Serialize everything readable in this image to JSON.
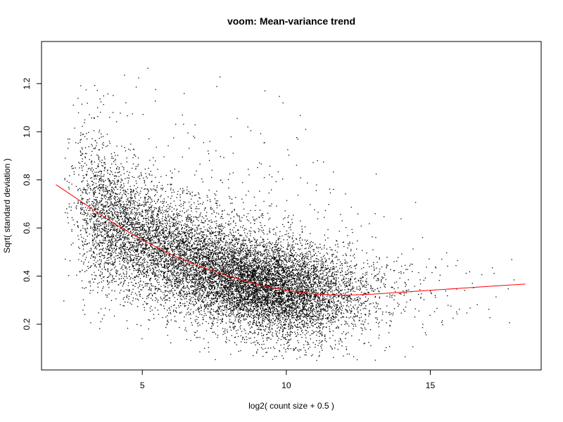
{
  "chart_data": {
    "type": "scatter",
    "title": "voom: Mean-variance trend",
    "xlabel": "log2( count size + 0.5 )",
    "ylabel": "Sqrt( standard deviation )",
    "xlim": [
      1.5,
      18.85
    ],
    "ylim": [
      0.01,
      1.375
    ],
    "x_ticks": [
      5,
      10,
      15
    ],
    "x_tick_labels": [
      "5",
      "10",
      "15"
    ],
    "y_ticks": [
      0.2,
      0.4,
      0.6,
      0.8,
      1.0,
      1.2
    ],
    "y_tick_labels": [
      "0.2",
      "0.4",
      "0.6",
      "0.8",
      "1.0",
      "1.2"
    ],
    "grid": false,
    "legend": "none",
    "colors": {
      "points": "#000000",
      "trend": "#ff0000"
    },
    "trend_line": {
      "x": [
        2.0,
        3.0,
        4.0,
        5.0,
        6.0,
        7.0,
        8.0,
        9.0,
        10.0,
        11.0,
        12.0,
        13.0,
        14.0,
        15.0,
        16.0,
        17.0,
        18.3
      ],
      "y": [
        0.78,
        0.7,
        0.62,
        0.55,
        0.49,
        0.44,
        0.4,
        0.365,
        0.34,
        0.325,
        0.32,
        0.325,
        0.333,
        0.341,
        0.349,
        0.357,
        0.367
      ]
    },
    "point_density": [
      {
        "x": 2.5,
        "y_mean": 0.74,
        "y_sd": 0.16,
        "n": 55
      },
      {
        "x": 3.0,
        "y_mean": 0.7,
        "y_sd": 0.17,
        "n": 260
      },
      {
        "x": 3.5,
        "y_mean": 0.65,
        "y_sd": 0.15,
        "n": 520
      },
      {
        "x": 4.0,
        "y_mean": 0.61,
        "y_sd": 0.14,
        "n": 560
      },
      {
        "x": 4.5,
        "y_mean": 0.58,
        "y_sd": 0.13,
        "n": 560
      },
      {
        "x": 5.0,
        "y_mean": 0.55,
        "y_sd": 0.13,
        "n": 560
      },
      {
        "x": 5.5,
        "y_mean": 0.52,
        "y_sd": 0.12,
        "n": 560
      },
      {
        "x": 6.0,
        "y_mean": 0.49,
        "y_sd": 0.12,
        "n": 600
      },
      {
        "x": 6.5,
        "y_mean": 0.47,
        "y_sd": 0.115,
        "n": 640
      },
      {
        "x": 7.0,
        "y_mean": 0.44,
        "y_sd": 0.11,
        "n": 720
      },
      {
        "x": 7.5,
        "y_mean": 0.42,
        "y_sd": 0.11,
        "n": 780
      },
      {
        "x": 8.0,
        "y_mean": 0.4,
        "y_sd": 0.105,
        "n": 860
      },
      {
        "x": 8.5,
        "y_mean": 0.38,
        "y_sd": 0.1,
        "n": 940
      },
      {
        "x": 9.0,
        "y_mean": 0.365,
        "y_sd": 0.1,
        "n": 980
      },
      {
        "x": 9.5,
        "y_mean": 0.35,
        "y_sd": 0.1,
        "n": 940
      },
      {
        "x": 10.0,
        "y_mean": 0.34,
        "y_sd": 0.1,
        "n": 860
      },
      {
        "x": 10.5,
        "y_mean": 0.33,
        "y_sd": 0.1,
        "n": 720
      },
      {
        "x": 11.0,
        "y_mean": 0.325,
        "y_sd": 0.1,
        "n": 560
      },
      {
        "x": 11.5,
        "y_mean": 0.32,
        "y_sd": 0.1,
        "n": 400
      },
      {
        "x": 12.0,
        "y_mean": 0.32,
        "y_sd": 0.1,
        "n": 260
      },
      {
        "x": 12.5,
        "y_mean": 0.32,
        "y_sd": 0.1,
        "n": 160
      },
      {
        "x": 13.0,
        "y_mean": 0.325,
        "y_sd": 0.1,
        "n": 100
      },
      {
        "x": 13.5,
        "y_mean": 0.33,
        "y_sd": 0.1,
        "n": 60
      },
      {
        "x": 14.0,
        "y_mean": 0.335,
        "y_sd": 0.1,
        "n": 40
      },
      {
        "x": 14.5,
        "y_mean": 0.34,
        "y_sd": 0.1,
        "n": 25
      },
      {
        "x": 15.0,
        "y_mean": 0.34,
        "y_sd": 0.1,
        "n": 18
      },
      {
        "x": 15.5,
        "y_mean": 0.345,
        "y_sd": 0.1,
        "n": 12
      },
      {
        "x": 16.0,
        "y_mean": 0.35,
        "y_sd": 0.1,
        "n": 9
      },
      {
        "x": 16.5,
        "y_mean": 0.35,
        "y_sd": 0.1,
        "n": 6
      },
      {
        "x": 17.0,
        "y_mean": 0.355,
        "y_sd": 0.1,
        "n": 5
      },
      {
        "x": 17.5,
        "y_mean": 0.36,
        "y_sd": 0.1,
        "n": 3
      },
      {
        "x": 18.0,
        "y_mean": 0.365,
        "y_sd": 0.1,
        "n": 2
      }
    ]
  }
}
